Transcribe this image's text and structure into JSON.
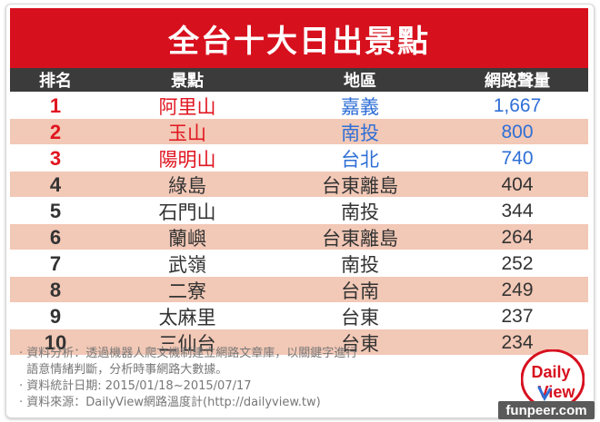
{
  "title": "全台十大日出景點",
  "columns": [
    "排名",
    "景點",
    "地區",
    "網路聲量"
  ],
  "rows": [
    {
      "rank": "1",
      "place": "阿里山",
      "region": "嘉義",
      "volume": "1,667"
    },
    {
      "rank": "2",
      "place": "玉山",
      "region": "南投",
      "volume": "800"
    },
    {
      "rank": "3",
      "place": "陽明山",
      "region": "台北",
      "volume": "740"
    },
    {
      "rank": "4",
      "place": "綠島",
      "region": "台東離島",
      "volume": "404"
    },
    {
      "rank": "5",
      "place": "石門山",
      "region": "南投",
      "volume": "344"
    },
    {
      "rank": "6",
      "place": "蘭嶼",
      "region": "台東離島",
      "volume": "264"
    },
    {
      "rank": "7",
      "place": "武嶺",
      "region": "南投",
      "volume": "252"
    },
    {
      "rank": "8",
      "place": "二寮",
      "region": "台南",
      "volume": "249"
    },
    {
      "rank": "9",
      "place": "太麻里",
      "region": "台東",
      "volume": "237"
    },
    {
      "rank": "10",
      "place": "三仙台",
      "region": "台東",
      "volume": "234"
    }
  ],
  "notes": [
    "· 資料分析：透過機器人爬文機制建立網路文章庫，以關鍵字進行",
    "  語意情緒判斷，分析時事網路大數據。",
    "· 資料統計日期: 2015/01/18~2015/07/17",
    "· 資料來源：DailyView網路溫度計(http://dailyview.tw)"
  ],
  "logo": {
    "line1": "Daily",
    "line2": "View"
  },
  "watermark": "funpeer.com",
  "colors": {
    "accent": "#d7101e",
    "header": "#3b3b3b",
    "shade": "#f2c8b6",
    "top_blue": "#2f6fd6"
  }
}
